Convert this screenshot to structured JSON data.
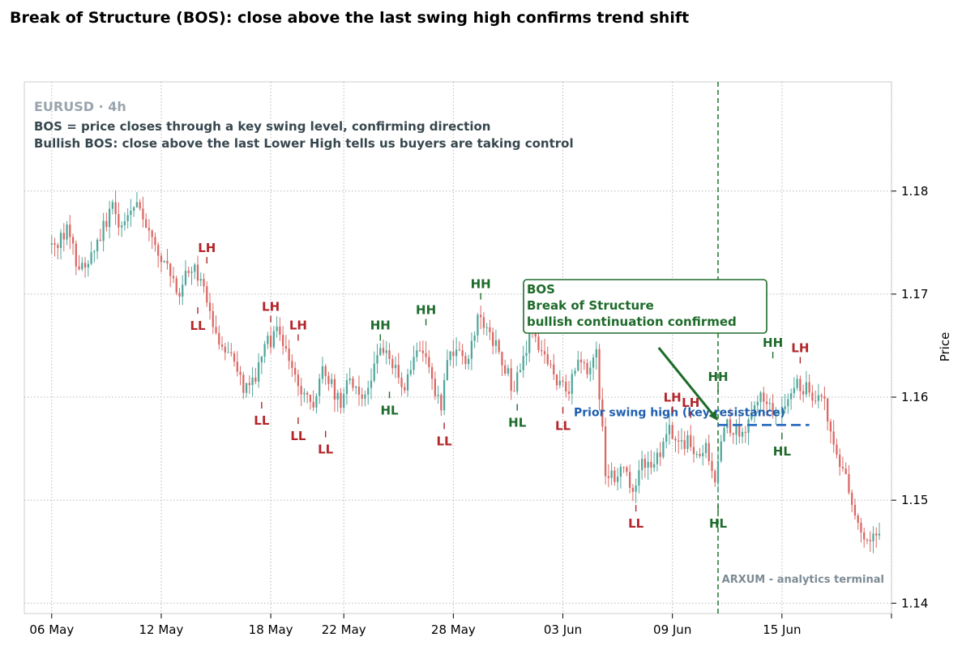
{
  "title": "Break of Structure (BOS): close above the last swing high confirms trend shift",
  "chart_data": {
    "type": "candlestick",
    "symbol": "EURUSD · 4h",
    "subtitle_lines": [
      "BOS = price closes through a key swing level, confirming direction",
      "Bullish BOS: close above the last Lower High tells us buyers are taking control"
    ],
    "ylabel": "Price",
    "xlim": [
      "2025-05-04T12:00",
      "2025-06-21T00:00"
    ],
    "ylim": [
      1.139,
      1.1906
    ],
    "y_ticks": [
      1.14,
      1.15,
      1.16,
      1.17,
      1.18
    ],
    "y_tick_labels": [
      "1.14",
      "1.15",
      "1.16",
      "1.17",
      "1.18"
    ],
    "x_ticks": [
      "2025-05-06",
      "2025-05-12",
      "2025-05-18",
      "2025-05-22",
      "2025-05-28",
      "2025-06-03",
      "2025-06-09",
      "2025-06-15",
      "2025-06-21"
    ],
    "x_tick_labels": [
      "06 May",
      "12 May",
      "18 May",
      "22 May",
      "28 May",
      "03 Jun",
      "09 Jun",
      "15 Jun",
      ""
    ],
    "grid": true,
    "colors": {
      "up": "#4fa69a",
      "down": "#d96763",
      "bullish_label": "#1e6b2b",
      "bearish_label": "#b3262b",
      "resistance": "#2f6fbf"
    },
    "path": [
      [
        "2025-05-06T00:00",
        1.1748
      ],
      [
        "2025-05-06T12:00",
        1.1745
      ],
      [
        "2025-05-07T00:00",
        1.1768
      ],
      [
        "2025-05-07T12:00",
        1.173
      ],
      [
        "2025-05-08T00:00",
        1.1722
      ],
      [
        "2025-05-08T12:00",
        1.1742
      ],
      [
        "2025-05-09T00:00",
        1.1765
      ],
      [
        "2025-05-09T12:00",
        1.1782
      ],
      [
        "2025-05-10T00:00",
        1.176
      ],
      [
        "2025-05-10T12:00",
        1.1776
      ],
      [
        "2025-05-11T00:00",
        1.1785
      ],
      [
        "2025-05-11T12:00",
        1.176
      ],
      [
        "2025-05-12T00:00",
        1.1738
      ],
      [
        "2025-05-12T12:00",
        1.1722
      ],
      [
        "2025-05-13T00:00",
        1.17
      ],
      [
        "2025-05-13T12:00",
        1.1715
      ],
      [
        "2025-05-14T00:00",
        1.1722
      ],
      [
        "2025-05-14T12:00",
        1.17
      ],
      [
        "2025-05-15T00:00",
        1.167
      ],
      [
        "2025-05-15T12:00",
        1.165
      ],
      [
        "2025-05-16T00:00",
        1.1635
      ],
      [
        "2025-05-16T12:00",
        1.1615
      ],
      [
        "2025-05-17T00:00",
        1.1605
      ],
      [
        "2025-05-17T12:00",
        1.1628
      ],
      [
        "2025-05-18T00:00",
        1.1652
      ],
      [
        "2025-05-18T12:00",
        1.1662
      ],
      [
        "2025-05-19T00:00",
        1.164
      ],
      [
        "2025-05-19T12:00",
        1.1615
      ],
      [
        "2025-05-20T00:00",
        1.16
      ],
      [
        "2025-05-20T12:00",
        1.1595
      ],
      [
        "2025-05-21T00:00",
        1.1622
      ],
      [
        "2025-05-21T12:00",
        1.1612
      ],
      [
        "2025-05-22T00:00",
        1.1592
      ],
      [
        "2025-05-22T12:00",
        1.162
      ],
      [
        "2025-05-23T00:00",
        1.16
      ],
      [
        "2025-05-23T12:00",
        1.1608
      ],
      [
        "2025-05-24T00:00",
        1.1642
      ],
      [
        "2025-05-24T12:00",
        1.1638
      ],
      [
        "2025-05-25T00:00",
        1.1628
      ],
      [
        "2025-05-25T12:00",
        1.1612
      ],
      [
        "2025-05-26T00:00",
        1.1638
      ],
      [
        "2025-05-26T12:00",
        1.1645
      ],
      [
        "2025-05-27T00:00",
        1.161
      ],
      [
        "2025-05-27T12:00",
        1.159
      ],
      [
        "2025-05-28T00:00",
        1.1648
      ],
      [
        "2025-05-28T12:00",
        1.1638
      ],
      [
        "2025-05-29T00:00",
        1.1632
      ],
      [
        "2025-05-29T12:00",
        1.168
      ],
      [
        "2025-05-30T00:00",
        1.1665
      ],
      [
        "2025-05-30T12:00",
        1.165
      ],
      [
        "2025-05-31T00:00",
        1.163
      ],
      [
        "2025-05-31T12:00",
        1.1605
      ],
      [
        "2025-06-01T00:00",
        1.164
      ],
      [
        "2025-06-01T12:00",
        1.1665
      ],
      [
        "2025-06-02T00:00",
        1.1645
      ],
      [
        "2025-06-02T12:00",
        1.1628
      ],
      [
        "2025-06-03T00:00",
        1.1608
      ],
      [
        "2025-06-03T12:00",
        1.1605
      ],
      [
        "2025-06-04T00:00",
        1.164
      ],
      [
        "2025-06-04T12:00",
        1.162
      ],
      [
        "2025-06-05T00:00",
        1.164
      ],
      [
        "2025-06-05T12:00",
        1.153
      ],
      [
        "2025-06-06T00:00",
        1.1518
      ],
      [
        "2025-06-06T12:00",
        1.1532
      ],
      [
        "2025-06-07T00:00",
        1.1508
      ],
      [
        "2025-06-07T12:00",
        1.1542
      ],
      [
        "2025-06-08T00:00",
        1.153
      ],
      [
        "2025-06-08T12:00",
        1.1545
      ],
      [
        "2025-06-09T00:00",
        1.1575
      ],
      [
        "2025-06-09T12:00",
        1.155
      ],
      [
        "2025-06-10T00:00",
        1.156
      ],
      [
        "2025-06-10T12:00",
        1.1538
      ],
      [
        "2025-06-11T00:00",
        1.1548
      ],
      [
        "2025-06-11T12:00",
        1.1515
      ],
      [
        "2025-06-12T00:00",
        1.1575
      ],
      [
        "2025-06-12T12:00",
        1.1568
      ],
      [
        "2025-06-13T00:00",
        1.157
      ],
      [
        "2025-06-13T12:00",
        1.158
      ],
      [
        "2025-06-14T00:00",
        1.1605
      ],
      [
        "2025-06-14T12:00",
        1.159
      ],
      [
        "2025-06-15T00:00",
        1.1585
      ],
      [
        "2025-06-15T12:00",
        1.16
      ],
      [
        "2025-06-16T00:00",
        1.1612
      ],
      [
        "2025-06-16T12:00",
        1.1608
      ],
      [
        "2025-06-17T00:00",
        1.1595
      ],
      [
        "2025-06-17T12:00",
        1.1592
      ],
      [
        "2025-06-18T00:00",
        1.155
      ],
      [
        "2025-06-18T12:00",
        1.1528
      ],
      [
        "2025-06-19T00:00",
        1.1498
      ],
      [
        "2025-06-19T12:00",
        1.1462
      ],
      [
        "2025-06-20T00:00",
        1.1455
      ],
      [
        "2025-06-20T12:00",
        1.147
      ]
    ],
    "swing_labels": [
      {
        "text": "LH",
        "x": "2025-05-14T12:00",
        "y": 1.1725,
        "kind": "high",
        "side": "bearish"
      },
      {
        "text": "LL",
        "x": "2025-05-14T00:00",
        "y": 1.1692,
        "kind": "low",
        "side": "bearish"
      },
      {
        "text": "LH",
        "x": "2025-05-18T00:00",
        "y": 1.1668,
        "kind": "high",
        "side": "bearish"
      },
      {
        "text": "LL",
        "x": "2025-05-17T12:00",
        "y": 1.16,
        "kind": "low",
        "side": "bearish"
      },
      {
        "text": "LH",
        "x": "2025-05-19T12:00",
        "y": 1.165,
        "kind": "high",
        "side": "bearish"
      },
      {
        "text": "LL",
        "x": "2025-05-19T12:00",
        "y": 1.1585,
        "kind": "low",
        "side": "bearish"
      },
      {
        "text": "LL",
        "x": "2025-05-21T00:00",
        "y": 1.1572,
        "kind": "low",
        "side": "bearish"
      },
      {
        "text": "HH",
        "x": "2025-05-24T00:00",
        "y": 1.165,
        "kind": "high",
        "side": "bullish"
      },
      {
        "text": "HL",
        "x": "2025-05-24T12:00",
        "y": 1.161,
        "kind": "low",
        "side": "bullish"
      },
      {
        "text": "HH",
        "x": "2025-05-26T12:00",
        "y": 1.1665,
        "kind": "high",
        "side": "bullish"
      },
      {
        "text": "LL",
        "x": "2025-05-27T12:00",
        "y": 1.158,
        "kind": "low",
        "side": "bearish"
      },
      {
        "text": "HH",
        "x": "2025-05-29T12:00",
        "y": 1.169,
        "kind": "high",
        "side": "bullish"
      },
      {
        "text": "HL",
        "x": "2025-05-31T12:00",
        "y": 1.1598,
        "kind": "low",
        "side": "bullish"
      },
      {
        "text": "LL",
        "x": "2025-06-03T00:00",
        "y": 1.1595,
        "kind": "low",
        "side": "bearish"
      },
      {
        "text": "LL",
        "x": "2025-06-07T00:00",
        "y": 1.15,
        "kind": "low",
        "side": "bearish"
      },
      {
        "text": "LH",
        "x": "2025-06-09T00:00",
        "y": 1.158,
        "kind": "high",
        "side": "bearish"
      },
      {
        "text": "LH",
        "x": "2025-06-10T00:00",
        "y": 1.1575,
        "kind": "high",
        "side": "bearish"
      },
      {
        "text": "HL",
        "x": "2025-06-11T12:00",
        "y": 1.15,
        "kind": "low",
        "side": "bullish"
      },
      {
        "text": "HH",
        "x": "2025-06-11T12:00",
        "y": 1.16,
        "kind": "high",
        "side": "bullish"
      },
      {
        "text": "HH",
        "x": "2025-06-14T12:00",
        "y": 1.1633,
        "kind": "high",
        "side": "bullish"
      },
      {
        "text": "HL",
        "x": "2025-06-15T00:00",
        "y": 1.157,
        "kind": "low",
        "side": "bullish"
      },
      {
        "text": "LH",
        "x": "2025-06-16T00:00",
        "y": 1.1628,
        "kind": "high",
        "side": "bearish"
      }
    ],
    "bos": {
      "x": "2025-06-11T12:00",
      "label_lines": [
        "BOS",
        "Break of Structure",
        "bullish continuation confirmed"
      ],
      "arrow_from": [
        "2025-06-08T06:00",
        1.1648
      ],
      "arrow_to": [
        "2025-06-11T12:00",
        1.1577
      ]
    },
    "resistance": {
      "label": "Prior swing high (key resistance)",
      "y": 1.1573,
      "x_start": "2025-06-11T12:00",
      "x_end": "2025-06-16T12:00"
    },
    "watermark": "ARXUM - analytics terminal"
  }
}
